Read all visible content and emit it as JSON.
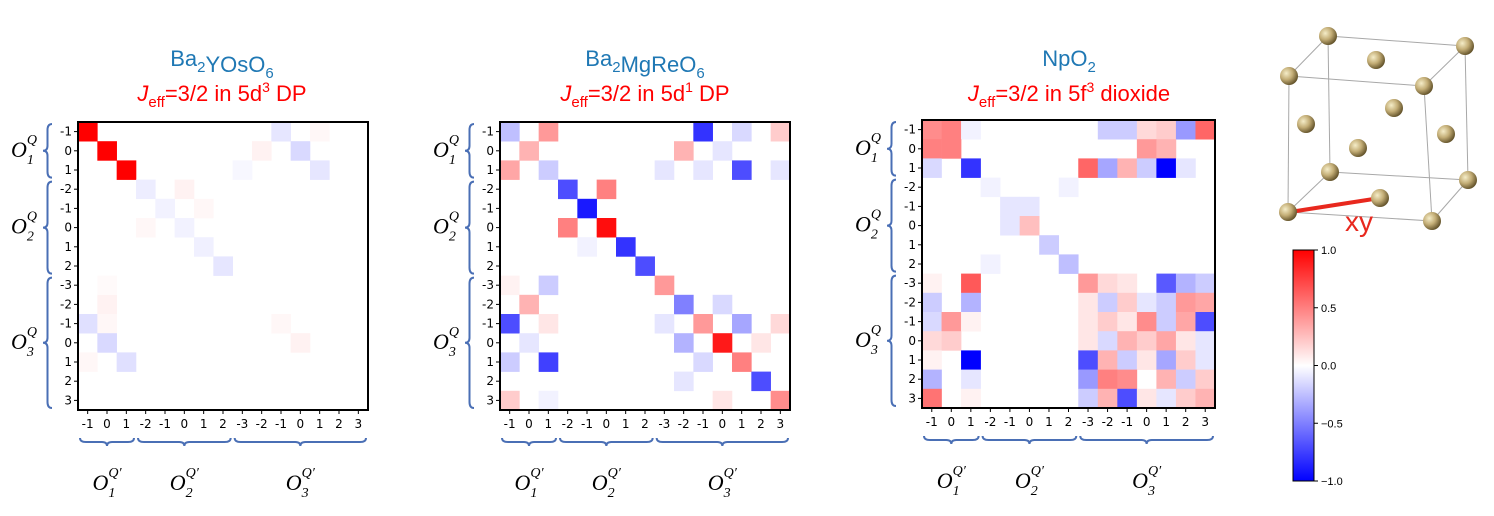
{
  "chart_data": [
    {
      "type": "heatmap",
      "title_compound": {
        "base": [
          "Ba",
          "YOsO",
          ""
        ],
        "subs": [
          "2",
          "6"
        ]
      },
      "subtitle": {
        "j": "J",
        "eff": "eff",
        "rest": "=3/2 in 5d",
        "sup": "3",
        "tail": " DP"
      },
      "row_ticks": [
        "-1",
        "0",
        "1",
        "-2",
        "-1",
        "0",
        "1",
        "2",
        "-3",
        "-2",
        "-1",
        "0",
        "1",
        "2",
        "3"
      ],
      "col_ticks": [
        "-1",
        "0",
        "1",
        "-2",
        "-1",
        "0",
        "1",
        "2",
        "-3",
        "-2",
        "-1",
        "0",
        "1",
        "2",
        "3"
      ],
      "row_groups": [
        "O1Q",
        "O2Q",
        "O3Q"
      ],
      "col_groups": [
        "O1Q'",
        "O2Q'",
        "O3Q'"
      ],
      "cells": [
        [
          0,
          0,
          1.0
        ],
        [
          1,
          1,
          1.0
        ],
        [
          2,
          2,
          1.0
        ],
        [
          0,
          10,
          -0.1
        ],
        [
          1,
          11,
          -0.15
        ],
        [
          2,
          12,
          -0.1
        ],
        [
          0,
          12,
          0.03
        ],
        [
          1,
          9,
          0.05
        ],
        [
          2,
          8,
          -0.03
        ],
        [
          3,
          3,
          -0.07
        ],
        [
          3,
          5,
          0.05
        ],
        [
          4,
          4,
          -0.05
        ],
        [
          4,
          6,
          0.03
        ],
        [
          5,
          5,
          -0.05
        ],
        [
          5,
          3,
          0.03
        ],
        [
          6,
          6,
          -0.06
        ],
        [
          7,
          7,
          -0.1
        ],
        [
          9,
          1,
          0.05
        ],
        [
          8,
          1,
          0.02
        ],
        [
          10,
          0,
          -0.12
        ],
        [
          10,
          1,
          0.03
        ],
        [
          11,
          1,
          -0.15
        ],
        [
          12,
          2,
          -0.12
        ],
        [
          12,
          0,
          0.03
        ],
        [
          11,
          11,
          0.05
        ],
        [
          10,
          10,
          0.03
        ]
      ],
      "vrange": [
        -1,
        1
      ]
    },
    {
      "type": "heatmap",
      "title_compound": {
        "base": [
          "Ba",
          "MgReO",
          ""
        ],
        "subs": [
          "2",
          "6"
        ]
      },
      "subtitle": {
        "j": "J",
        "eff": "eff",
        "rest": "=3/2 in 5d",
        "sup": "1",
        "tail": " DP"
      },
      "row_ticks": [
        "-1",
        "0",
        "1",
        "-2",
        "-1",
        "0",
        "1",
        "2",
        "-3",
        "-2",
        "-1",
        "0",
        "1",
        "2",
        "3"
      ],
      "col_ticks": [
        "-1",
        "0",
        "1",
        "-2",
        "-1",
        "0",
        "1",
        "2",
        "-3",
        "-2",
        "-1",
        "0",
        "1",
        "2",
        "3"
      ],
      "row_groups": [
        "O1Q",
        "O2Q",
        "O3Q"
      ],
      "col_groups": [
        "O1Q'",
        "O2Q'",
        "O3Q'"
      ],
      "cells": [
        [
          0,
          0,
          -0.25
        ],
        [
          0,
          2,
          0.4
        ],
        [
          1,
          1,
          0.3
        ],
        [
          2,
          0,
          0.35
        ],
        [
          2,
          2,
          -0.2
        ],
        [
          0,
          10,
          -0.8
        ],
        [
          0,
          12,
          -0.15
        ],
        [
          0,
          14,
          0.2
        ],
        [
          1,
          9,
          0.3
        ],
        [
          1,
          11,
          -0.1
        ],
        [
          2,
          8,
          -0.1
        ],
        [
          2,
          10,
          -0.1
        ],
        [
          2,
          12,
          -0.7
        ],
        [
          2,
          14,
          -0.1
        ],
        [
          3,
          3,
          -0.7
        ],
        [
          3,
          5,
          0.5
        ],
        [
          4,
          4,
          -0.9
        ],
        [
          5,
          3,
          0.5
        ],
        [
          5,
          5,
          0.95
        ],
        [
          6,
          6,
          -0.8
        ],
        [
          6,
          4,
          -0.05
        ],
        [
          7,
          7,
          -0.7
        ],
        [
          8,
          8,
          0.4
        ],
        [
          9,
          9,
          -0.5
        ],
        [
          10,
          10,
          0.4
        ],
        [
          10,
          12,
          -0.35
        ],
        [
          11,
          11,
          0.9
        ],
        [
          12,
          12,
          0.5
        ],
        [
          13,
          13,
          -0.7
        ],
        [
          14,
          14,
          0.45
        ],
        [
          8,
          0,
          0.05
        ],
        [
          8,
          2,
          -0.2
        ],
        [
          9,
          1,
          0.3
        ],
        [
          10,
          0,
          -0.7
        ],
        [
          10,
          2,
          0.1
        ],
        [
          11,
          1,
          -0.1
        ],
        [
          12,
          0,
          -0.2
        ],
        [
          12,
          2,
          -0.75
        ],
        [
          14,
          0,
          0.2
        ],
        [
          14,
          2,
          -0.05
        ],
        [
          9,
          11,
          -0.15
        ],
        [
          10,
          8,
          -0.1
        ],
        [
          10,
          14,
          0.15
        ],
        [
          11,
          9,
          -0.3
        ],
        [
          11,
          13,
          0.1
        ],
        [
          12,
          10,
          -0.15
        ],
        [
          14,
          11,
          0.1
        ],
        [
          13,
          9,
          -0.1
        ]
      ],
      "vrange": [
        -1,
        1
      ]
    },
    {
      "type": "heatmap",
      "title_compound": {
        "base": [
          "NpO",
          ""
        ],
        "subs": [
          "2"
        ]
      },
      "subtitle": {
        "j": "J",
        "eff": "eff",
        "rest": "=3/2 in 5f",
        "sup": "3",
        "tail": " dioxide"
      },
      "row_ticks": [
        "-1",
        "0",
        "1",
        "-2",
        "-1",
        "0",
        "1",
        "2",
        "-3",
        "-2",
        "-1",
        "0",
        "1",
        "2",
        "3"
      ],
      "col_ticks": [
        "-1",
        "0",
        "1",
        "-2",
        "-1",
        "0",
        "1",
        "2",
        "-3",
        "-2",
        "-1",
        "0",
        "1",
        "2",
        "3"
      ],
      "row_groups": [
        "O1Q",
        "O2Q",
        "O3Q"
      ],
      "col_groups": [
        "O1Q'",
        "O2Q'",
        "O3Q'"
      ],
      "cells": [
        [
          0,
          0,
          0.45
        ],
        [
          0,
          1,
          0.5
        ],
        [
          0,
          2,
          -0.05
        ],
        [
          1,
          0,
          0.5
        ],
        [
          1,
          1,
          0.5
        ],
        [
          2,
          0,
          -0.15
        ],
        [
          2,
          2,
          -0.8
        ],
        [
          0,
          9,
          -0.2
        ],
        [
          0,
          10,
          -0.2
        ],
        [
          0,
          11,
          0.15
        ],
        [
          0,
          12,
          0.2
        ],
        [
          0,
          13,
          -0.4
        ],
        [
          0,
          14,
          0.6
        ],
        [
          1,
          11,
          0.4
        ],
        [
          1,
          12,
          0.3
        ],
        [
          2,
          8,
          0.6
        ],
        [
          2,
          9,
          -0.35
        ],
        [
          2,
          10,
          0.3
        ],
        [
          2,
          11,
          -0.2
        ],
        [
          2,
          12,
          -1.0
        ],
        [
          2,
          13,
          -0.1
        ],
        [
          3,
          3,
          -0.05
        ],
        [
          3,
          7,
          -0.05
        ],
        [
          4,
          4,
          -0.1
        ],
        [
          4,
          5,
          -0.1
        ],
        [
          5,
          4,
          -0.1
        ],
        [
          5,
          5,
          0.25
        ],
        [
          6,
          6,
          -0.2
        ],
        [
          7,
          7,
          -0.25
        ],
        [
          7,
          3,
          -0.05
        ],
        [
          8,
          2,
          0.65
        ],
        [
          8,
          0,
          0.05
        ],
        [
          9,
          0,
          -0.2
        ],
        [
          9,
          2,
          -0.3
        ],
        [
          10,
          0,
          -0.15
        ],
        [
          10,
          1,
          0.4
        ],
        [
          10,
          2,
          0.05
        ],
        [
          11,
          0,
          0.15
        ],
        [
          11,
          1,
          0.2
        ],
        [
          12,
          0,
          0.05
        ],
        [
          12,
          2,
          -1.0
        ],
        [
          13,
          0,
          -0.3
        ],
        [
          13,
          2,
          -0.1
        ],
        [
          14,
          0,
          0.55
        ],
        [
          14,
          2,
          0.05
        ],
        [
          8,
          8,
          0.4
        ],
        [
          8,
          9,
          0.15
        ],
        [
          8,
          10,
          0.1
        ],
        [
          8,
          12,
          -0.65
        ],
        [
          8,
          13,
          -0.3
        ],
        [
          8,
          14,
          -0.2
        ],
        [
          9,
          8,
          0.1
        ],
        [
          9,
          9,
          -0.2
        ],
        [
          9,
          10,
          0.2
        ],
        [
          9,
          11,
          -0.1
        ],
        [
          9,
          12,
          -0.2
        ],
        [
          9,
          13,
          0.4
        ],
        [
          9,
          14,
          0.35
        ],
        [
          10,
          8,
          0.1
        ],
        [
          10,
          9,
          0.2
        ],
        [
          10,
          10,
          0.1
        ],
        [
          10,
          11,
          0.45
        ],
        [
          10,
          12,
          -0.2
        ],
        [
          10,
          13,
          0.35
        ],
        [
          10,
          14,
          -0.7
        ],
        [
          11,
          8,
          0.1
        ],
        [
          11,
          9,
          -0.15
        ],
        [
          11,
          10,
          0.3
        ],
        [
          11,
          11,
          0.2
        ],
        [
          11,
          12,
          0.35
        ],
        [
          11,
          13,
          0.1
        ],
        [
          11,
          14,
          -0.1
        ],
        [
          12,
          8,
          -0.7
        ],
        [
          12,
          9,
          0.3
        ],
        [
          12,
          10,
          -0.2
        ],
        [
          12,
          11,
          0.1
        ],
        [
          12,
          12,
          -0.35
        ],
        [
          12,
          13,
          0.2
        ],
        [
          12,
          14,
          -0.1
        ],
        [
          13,
          8,
          -0.4
        ],
        [
          13,
          9,
          0.5
        ],
        [
          13,
          10,
          0.45
        ],
        [
          13,
          12,
          0.3
        ],
        [
          13,
          13,
          -0.2
        ],
        [
          13,
          14,
          0.2
        ],
        [
          14,
          8,
          -0.2
        ],
        [
          14,
          9,
          0.3
        ],
        [
          14,
          10,
          -0.7
        ],
        [
          14,
          11,
          0.1
        ],
        [
          14,
          12,
          -0.1
        ],
        [
          14,
          13,
          0.2
        ],
        [
          14,
          14,
          0.3
        ]
      ],
      "vrange": [
        -1,
        1
      ]
    }
  ],
  "colorbar": {
    "ticks": [
      "1.0",
      "0.5",
      "0.0",
      "−0.5",
      "−1.0"
    ],
    "values": [
      1,
      0.5,
      0,
      -0.5,
      -1
    ]
  },
  "crystal": {
    "label": "xy"
  },
  "colors": {
    "title": "#1f78b4",
    "subtitle": "#ff0000",
    "brace": "#4a6fb5",
    "bond": "#e8281e"
  }
}
